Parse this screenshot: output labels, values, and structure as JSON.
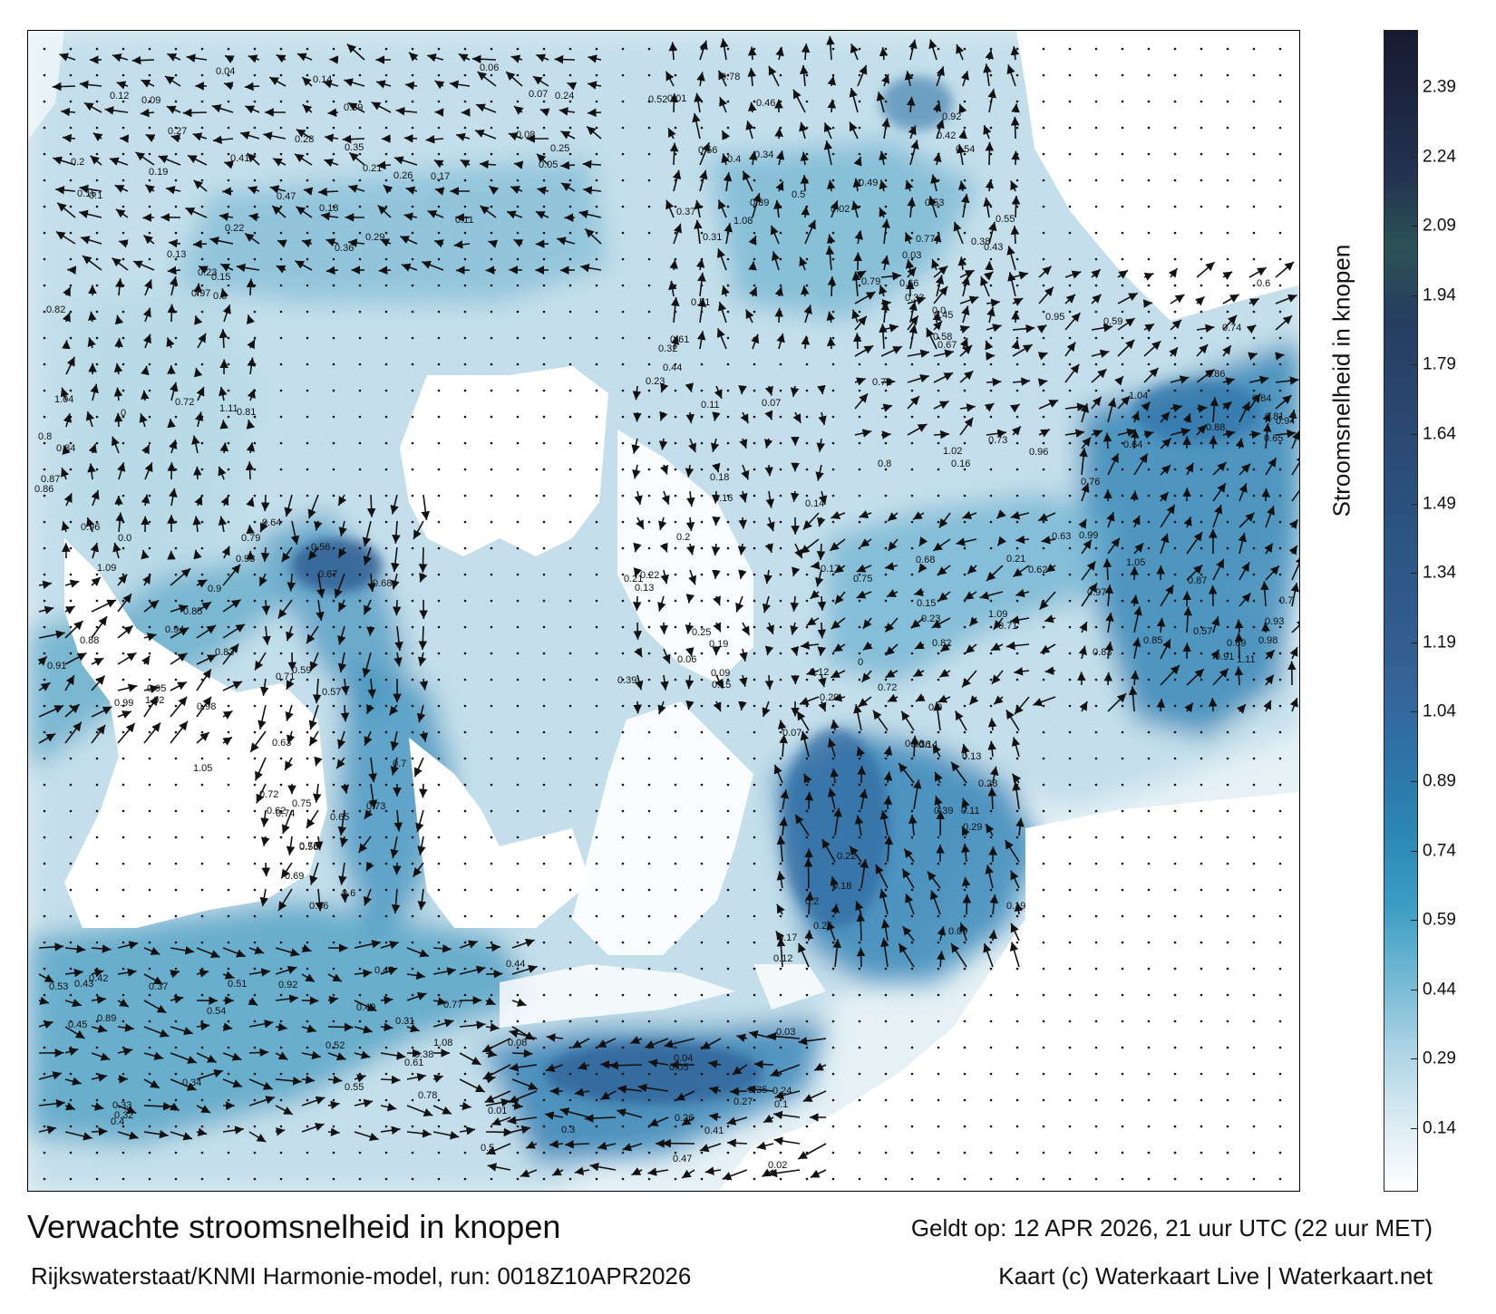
{
  "map": {
    "title": "Verwachte stroomsnelheid in knopen",
    "model_run": "Rijkswaterstaat/KNMI Harmonie-model, run: 0018Z10APR2026",
    "valid_time": "Geldt op: 12 APR 2026, 21 uur UTC (22 uur MET)",
    "credit": "Kaart (c) Waterkaart Live | Waterkaart.net"
  },
  "colorbar": {
    "label": "Stroomsnelheid in knopen",
    "ticks": [
      "2.39",
      "2.24",
      "2.09",
      "1.94",
      "1.79",
      "1.64",
      "1.49",
      "1.34",
      "1.19",
      "1.04",
      "0.89",
      "0.74",
      "0.59",
      "0.44",
      "0.29",
      "0.14"
    ],
    "colors": [
      "#ffffff",
      "#d8eaf2",
      "#a9d2e4",
      "#6db6d2",
      "#3a9cc2",
      "#2b85b3",
      "#2e73a6",
      "#356398",
      "#2f5a8c",
      "#2c5582",
      "#2a4c78",
      "#29456c",
      "#263d60",
      "#2b5256",
      "#233350",
      "#1d2642",
      "#161a30"
    ]
  },
  "current_labels": [
    {
      "t": "0.15",
      "v": 0.15
    },
    {
      "t": "0.23",
      "v": 0.23
    },
    {
      "t": "0.21",
      "v": 0.21
    },
    {
      "t": "0.16",
      "v": 0.16
    },
    {
      "t": "0.14",
      "v": 0.14
    },
    {
      "t": "0.22",
      "v": 0.22
    },
    {
      "t": "0.39",
      "v": 0.39
    },
    {
      "t": "0.29",
      "v": 0.29
    },
    {
      "t": "0.17",
      "v": 0.17
    },
    {
      "t": "0.09",
      "v": 0.09
    },
    {
      "t": "0.07",
      "v": 0.07
    },
    {
      "t": "0.12",
      "v": 0.12
    },
    {
      "t": "0.13",
      "v": 0.13
    },
    {
      "t": "0.11",
      "v": 0.11
    },
    {
      "t": "0.06",
      "v": 0.06
    },
    {
      "t": "0.2",
      "v": 0.2
    },
    {
      "t": "0.18",
      "v": 0.18
    },
    {
      "t": "0.19",
      "v": 0.19
    },
    {
      "t": "0.25",
      "v": 0.25
    },
    {
      "t": "0.28",
      "v": 0.28
    },
    {
      "t": "0.36",
      "v": 0.36
    },
    {
      "t": "0.3",
      "v": 0.3
    },
    {
      "t": "0.24",
      "v": 0.24
    },
    {
      "t": "0.27",
      "v": 0.27
    },
    {
      "t": "0.47",
      "v": 0.47
    },
    {
      "t": "0.41",
      "v": 0.41
    },
    {
      "t": "0.35",
      "v": 0.35
    },
    {
      "t": "0.26",
      "v": 0.26
    },
    {
      "t": "0.05",
      "v": 0.05
    },
    {
      "t": "0.08",
      "v": 0.08
    },
    {
      "t": "0.04",
      "v": 0.04
    },
    {
      "t": "0.1",
      "v": 0.1
    },
    {
      "t": "0.02",
      "v": 0.02
    },
    {
      "t": "0.03",
      "v": 0.03
    },
    {
      "t": "0.01",
      "v": 0.01
    },
    {
      "t": "0.92",
      "v": 0.92
    },
    {
      "t": "1.08",
      "v": 1.08
    },
    {
      "t": "0.89",
      "v": 0.89
    },
    {
      "t": "0.51",
      "v": 0.51
    },
    {
      "t": "0.78",
      "v": 0.78
    },
    {
      "t": "0.61",
      "v": 0.61
    },
    {
      "t": "0.77",
      "v": 0.77
    },
    {
      "t": "0.43",
      "v": 0.43
    },
    {
      "t": "0.33",
      "v": 0.33
    },
    {
      "t": "0.32",
      "v": 0.32
    },
    {
      "t": "0.53",
      "v": 0.53
    },
    {
      "t": "0.49",
      "v": 0.49
    },
    {
      "t": "0.46",
      "v": 0.46
    },
    {
      "t": "0.44",
      "v": 0.44
    },
    {
      "t": "0.52",
      "v": 0.52
    },
    {
      "t": "0.38",
      "v": 0.38
    },
    {
      "t": "0.37",
      "v": 0.37
    },
    {
      "t": "0.34",
      "v": 0.34
    },
    {
      "t": "0.31",
      "v": 0.31
    },
    {
      "t": "0.4",
      "v": 0.4
    },
    {
      "t": "0.42",
      "v": 0.42
    },
    {
      "t": "0.5",
      "v": 0.5
    },
    {
      "t": "0.45",
      "v": 0.45
    },
    {
      "t": "0.54",
      "v": 0.54
    },
    {
      "t": "0.55",
      "v": 0.55
    },
    {
      "t": "0.56",
      "v": 0.56
    },
    {
      "t": "0.57",
      "v": 0.57
    },
    {
      "t": "0.58",
      "v": 0.58
    },
    {
      "t": "0.59",
      "v": 0.59
    },
    {
      "t": "0.6",
      "v": 0.6
    },
    {
      "t": "0.62",
      "v": 0.62
    },
    {
      "t": "0.63",
      "v": 0.63
    },
    {
      "t": "0.64",
      "v": 0.64
    },
    {
      "t": "0.65",
      "v": 0.65
    },
    {
      "t": "0.66",
      "v": 0.66
    },
    {
      "t": "0.67",
      "v": 0.67
    },
    {
      "t": "0.68",
      "v": 0.68
    },
    {
      "t": "0.69",
      "v": 0.69
    },
    {
      "t": "0.7",
      "v": 0.7
    },
    {
      "t": "0.71",
      "v": 0.71
    },
    {
      "t": "0.72",
      "v": 0.72
    },
    {
      "t": "0.73",
      "v": 0.73
    },
    {
      "t": "0.74",
      "v": 0.74
    },
    {
      "t": "0.75",
      "v": 0.75
    },
    {
      "t": "0.76",
      "v": 0.76
    },
    {
      "t": "0.79",
      "v": 0.79
    },
    {
      "t": "0.8",
      "v": 0.8
    },
    {
      "t": "0.81",
      "v": 0.81
    },
    {
      "t": "0.82",
      "v": 0.82
    },
    {
      "t": "0.83",
      "v": 0.83
    },
    {
      "t": "0.84",
      "v": 0.84
    },
    {
      "t": "0.85",
      "v": 0.85
    },
    {
      "t": "0.86",
      "v": 0.86
    },
    {
      "t": "0.87",
      "v": 0.87
    },
    {
      "t": "0.88",
      "v": 0.88
    },
    {
      "t": "0.9",
      "v": 0.9
    },
    {
      "t": "0.91",
      "v": 0.91
    },
    {
      "t": "0.93",
      "v": 0.93
    },
    {
      "t": "0.94",
      "v": 0.94
    },
    {
      "t": "0.95",
      "v": 0.95
    },
    {
      "t": "0.96",
      "v": 0.96
    },
    {
      "t": "0.97",
      "v": 0.97
    },
    {
      "t": "0.98",
      "v": 0.98
    },
    {
      "t": "0.99",
      "v": 0.99
    },
    {
      "t": "1.02",
      "v": 1.02
    },
    {
      "t": "1.04",
      "v": 1.04
    },
    {
      "t": "1.05",
      "v": 1.05
    },
    {
      "t": "1.09",
      "v": 1.09
    },
    {
      "t": "1.11",
      "v": 1.11
    },
    {
      "t": "0.72",
      "v": 0.72
    },
    {
      "t": "0.0",
      "v": 0.0
    },
    {
      "t": "0",
      "v": 0
    }
  ]
}
